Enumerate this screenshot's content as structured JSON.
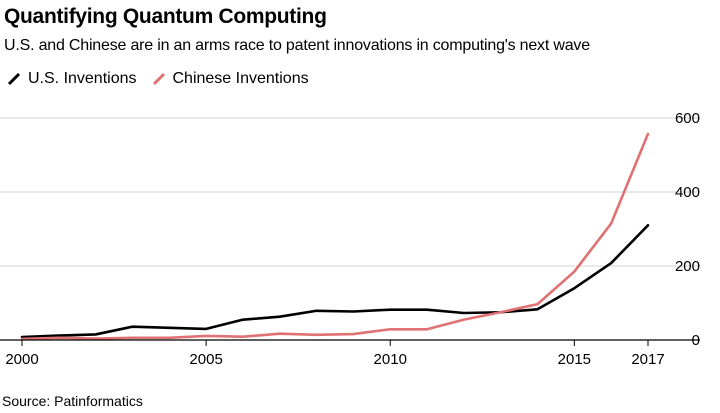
{
  "chart_data": {
    "type": "line",
    "title": "Quantifying Quantum Computing",
    "subtitle": "U.S. and Chinese are in an arms race to patent innovations in computing's next wave",
    "source": "Source: Patinformatics",
    "x": [
      2000,
      2001,
      2002,
      2003,
      2004,
      2005,
      2006,
      2007,
      2008,
      2009,
      2010,
      2011,
      2012,
      2013,
      2014,
      2015,
      2016,
      2017
    ],
    "x_ticks": [
      2000,
      2005,
      2010,
      2015,
      2017
    ],
    "y_ticks": [
      0,
      200,
      400,
      600
    ],
    "ylim": [
      0,
      600
    ],
    "xlim": [
      2000,
      2017
    ],
    "grid": true,
    "y_axis_side": "right",
    "legend_placement": "top-left",
    "series": [
      {
        "name": "U.S. Inventions",
        "color": "#000000",
        "values": [
          8,
          12,
          15,
          36,
          33,
          30,
          55,
          63,
          79,
          77,
          82,
          82,
          73,
          75,
          83,
          140,
          208,
          310
        ]
      },
      {
        "name": "Chinese Inventions",
        "color": "#e07173",
        "values": [
          3,
          6,
          4,
          6,
          6,
          11,
          9,
          17,
          14,
          16,
          29,
          29,
          55,
          75,
          97,
          185,
          315,
          557
        ]
      }
    ]
  }
}
